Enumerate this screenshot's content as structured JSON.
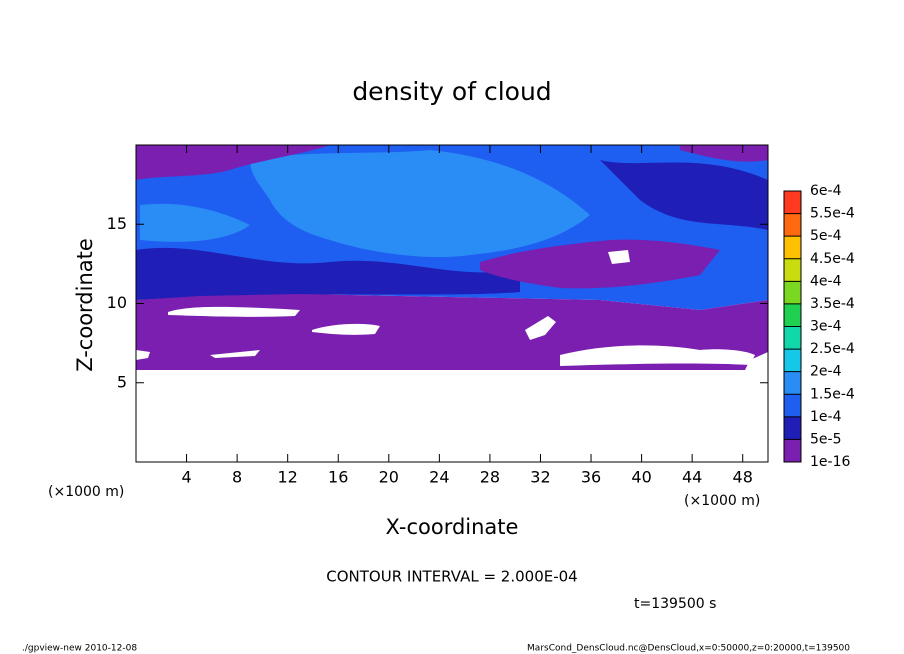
{
  "chart_data": {
    "type": "contour",
    "title": "density of cloud",
    "xlabel": "X-coordinate",
    "ylabel": "Z-coordinate",
    "x_unit_label": "(×1000 m)",
    "xlim": [
      0,
      50
    ],
    "xticks": [
      4,
      8,
      12,
      16,
      20,
      24,
      28,
      32,
      36,
      40,
      44,
      48
    ],
    "ylim": [
      0,
      20
    ],
    "yticks": [
      5,
      10,
      15
    ],
    "colorbar": {
      "levels": [
        {
          "value": 1e-16,
          "label": "1e-16"
        },
        {
          "value": 5e-05,
          "label": "5e-5"
        },
        {
          "value": 0.0001,
          "label": "1e-4"
        },
        {
          "value": 0.00015,
          "label": "1.5e-4"
        },
        {
          "value": 0.0002,
          "label": "2e-4"
        },
        {
          "value": 0.00025,
          "label": "2.5e-4"
        },
        {
          "value": 0.0003,
          "label": "3e-4"
        },
        {
          "value": 0.00035,
          "label": "3.5e-4"
        },
        {
          "value": 0.0004,
          "label": "4e-4"
        },
        {
          "value": 0.00045,
          "label": "4.5e-4"
        },
        {
          "value": 0.0005,
          "label": "5e-4"
        },
        {
          "value": 0.00055,
          "label": "5.5e-4"
        },
        {
          "value": 0.0006,
          "label": "6e-4"
        }
      ],
      "colors": [
        "#7a1fb0",
        "#1f1fb8",
        "#1e5ef0",
        "#2a8cf5",
        "#16c8e8",
        "#10d8a8",
        "#20d050",
        "#7ad820",
        "#c8dc10",
        "#ffc000",
        "#ff6a10",
        "#ff3a20",
        "#ff9a98"
      ]
    },
    "contour_interval": "CONTOUR INTERVAL = 2.000E-04",
    "time_label": "t=139500 s",
    "footer_left": "./gpview-new   2010-12-08",
    "footer_right": "MarsCond_DensCloud.nc@DensCloud,x=0:50000,z=0:20000,t=139500"
  }
}
